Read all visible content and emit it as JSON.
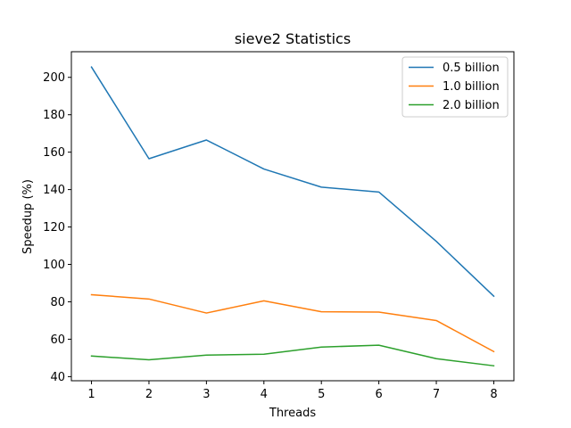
{
  "chart_data": {
    "type": "line",
    "title": "sieve2 Statistics",
    "xlabel": "Threads",
    "ylabel": "Speedup (%)",
    "x": [
      1,
      2,
      3,
      4,
      5,
      6,
      7,
      8
    ],
    "xticks": [
      "1",
      "2",
      "3",
      "4",
      "5",
      "6",
      "7",
      "8"
    ],
    "yticks": [
      40,
      60,
      80,
      100,
      120,
      140,
      160,
      180,
      200
    ],
    "xlim": [
      0.65,
      8.35
    ],
    "ylim": [
      37.8,
      213.7
    ],
    "grid": false,
    "legend_position": "upper right",
    "series": [
      {
        "name": "0.5 billion",
        "color": "#1f77b4",
        "values": [
          205.5,
          156.5,
          166.5,
          151.0,
          141.3,
          138.7,
          112.3,
          83.0
        ]
      },
      {
        "name": "1.0 billion",
        "color": "#ff7f0e",
        "values": [
          83.8,
          81.5,
          74.0,
          80.5,
          74.7,
          74.5,
          70.0,
          53.4
        ]
      },
      {
        "name": "2.0 billion",
        "color": "#2ca02c",
        "values": [
          51.0,
          49.0,
          51.5,
          52.0,
          55.8,
          56.8,
          49.6,
          45.8
        ]
      }
    ]
  }
}
